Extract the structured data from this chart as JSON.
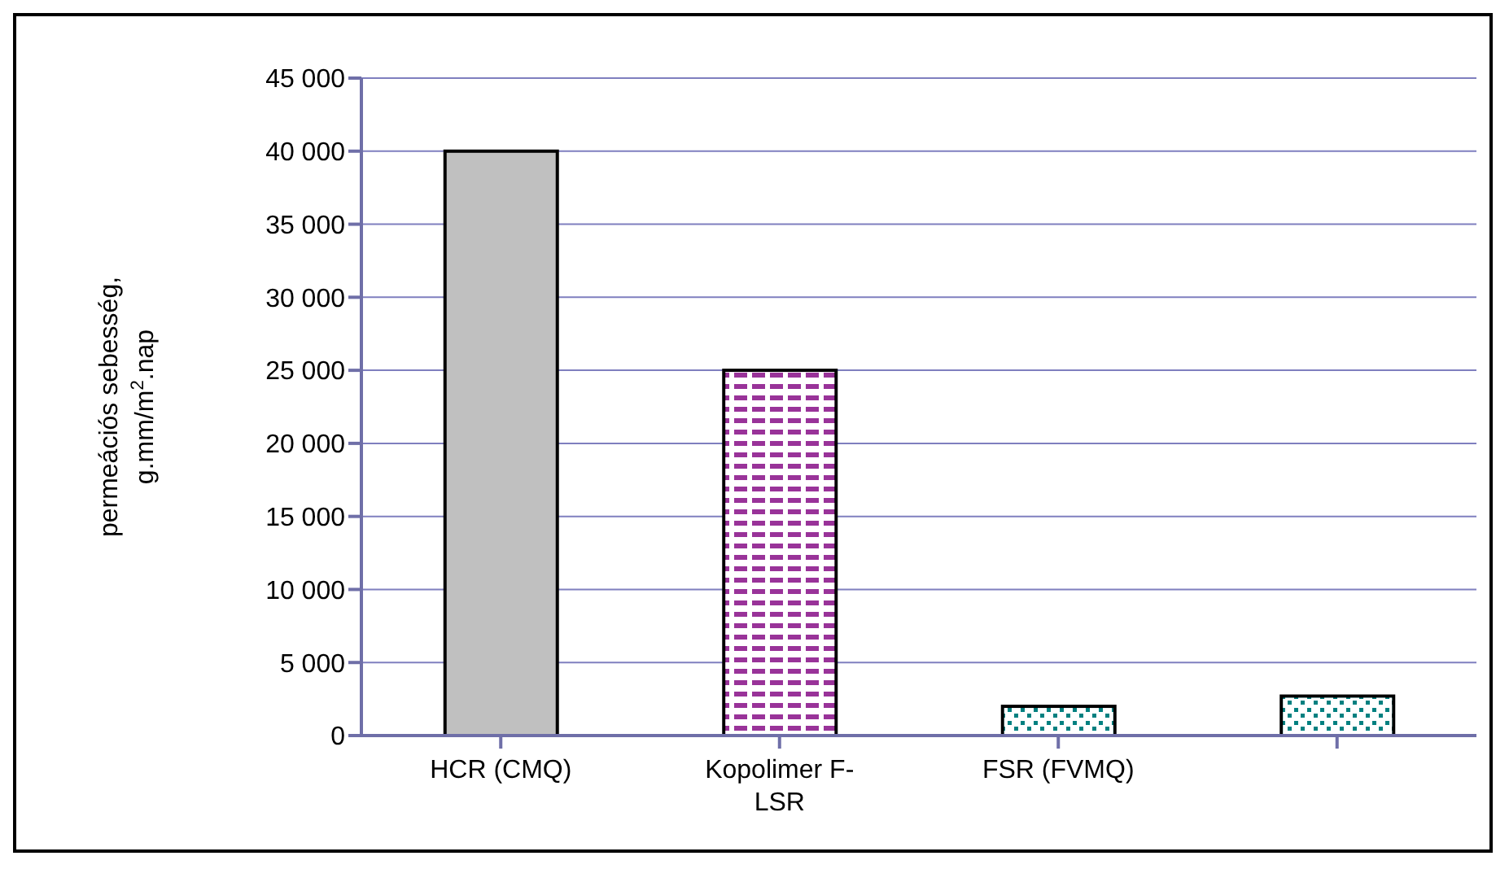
{
  "chart_data": {
    "type": "bar",
    "ylabel": "permeációs sebesség, g.mm/m$^{2}$.nap",
    "categories": [
      "HCR (CMQ)",
      "Kopolimer F-LSR",
      "FSR (FVMQ)",
      null
    ],
    "values": [
      40000,
      25000,
      2000,
      2700
    ],
    "colors": [
      "#c0c0c0",
      "#993399",
      "#008080",
      "#008080"
    ],
    "ylim": [
      0,
      45000
    ],
    "yticks": [
      {
        "value": 0,
        "label": "0"
      },
      {
        "value": 5000,
        "label": "5 000"
      },
      {
        "value": 10000,
        "label": "10 000"
      },
      {
        "value": 15000,
        "label": "15 000"
      },
      {
        "value": 20000,
        "label": "20 000"
      },
      {
        "value": 25000,
        "label": "25 000"
      },
      {
        "value": 30000,
        "label": "30 000"
      },
      {
        "value": 35000,
        "label": "35 000"
      },
      {
        "value": 40000,
        "label": "40 000"
      },
      {
        "value": 45000,
        "label": "45 000"
      }
    ],
    "grid": "y",
    "legend": false
  }
}
